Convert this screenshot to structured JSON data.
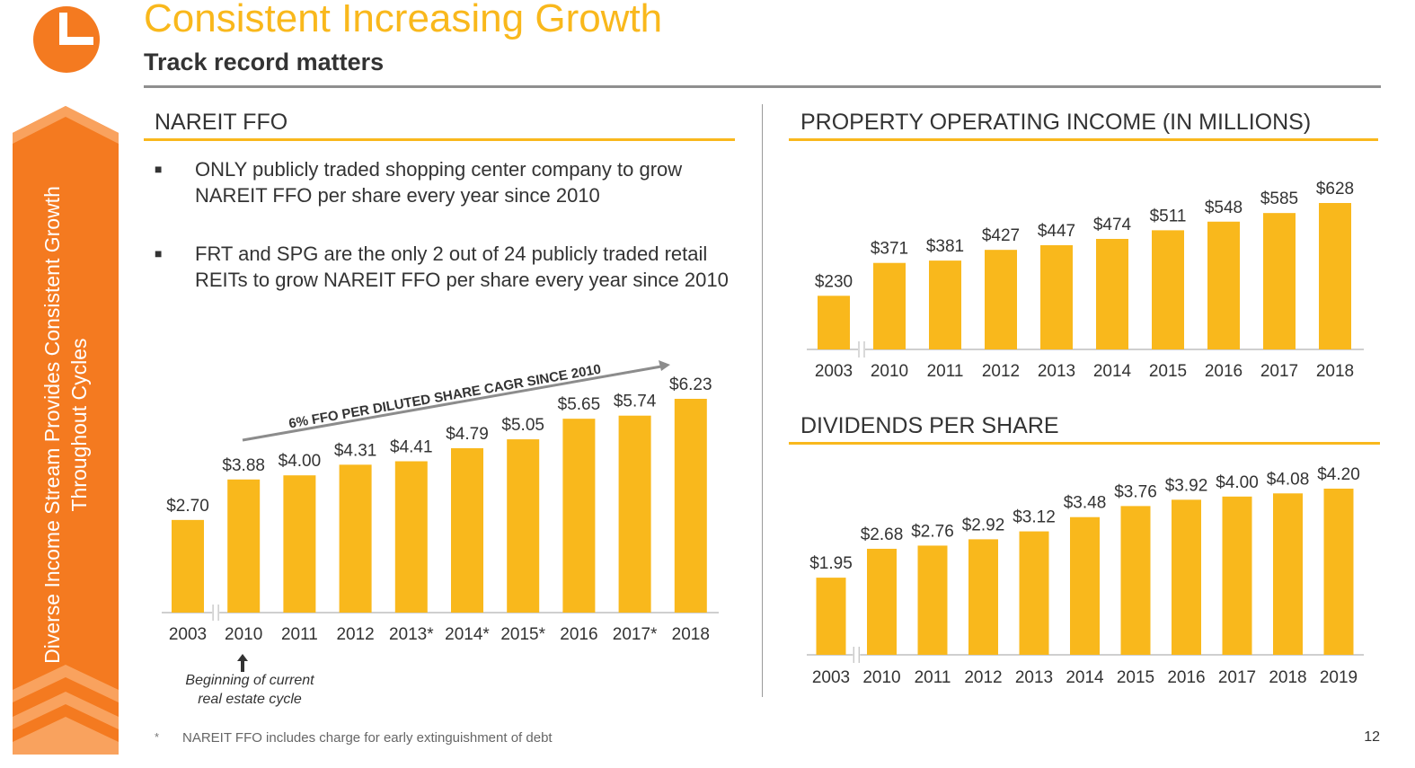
{
  "header": {
    "title": "Consistent Increasing Growth",
    "subtitle": "Track record matters"
  },
  "side_banner": {
    "line1": "Diverse Income Stream Provides Consistent Growth",
    "line2": "Throughout Cycles"
  },
  "ffo_section": {
    "title": "NAREIT FFO",
    "bullets": [
      "ONLY publicly traded shopping center company to grow NAREIT FFO per share every year since 2010",
      "FRT and SPG are the only 2 out of 24 publicly traded retail REITs to grow NAREIT FFO per share every year since 2010"
    ],
    "trend_label": "6% FFO PER DILUTED SHARE CAGR SINCE 2010",
    "cycle_note": [
      "Beginning of current",
      "real estate cycle"
    ]
  },
  "poi_section": {
    "title": "PROPERTY OPERATING INCOME (IN MILLIONS)"
  },
  "dps_section": {
    "title": "DIVIDENDS PER SHARE"
  },
  "footer": {
    "star": "*",
    "footnote": "NAREIT FFO includes charge for early extinguishment of debt",
    "page_number": "12"
  },
  "colors": {
    "bar": "#F9B81C",
    "accent_orange": "#F47A20",
    "axis": "#bfbfbf",
    "trend_arrow": "#8c8c8c"
  },
  "chart_data": [
    {
      "type": "bar",
      "id": "ffo",
      "categories": [
        "2003",
        "2010",
        "2011",
        "2012",
        "2013*",
        "2014*",
        "2015*",
        "2016",
        "2017*",
        "2018"
      ],
      "values": [
        2.7,
        3.88,
        4.0,
        4.31,
        4.41,
        4.79,
        5.05,
        5.65,
        5.74,
        6.23
      ],
      "labels": [
        "$2.70",
        "$3.88",
        "$4.00",
        "$4.31",
        "$4.41",
        "$4.79",
        "$5.05",
        "$5.65",
        "$5.74",
        "$6.23"
      ],
      "axis_break_after": "2003",
      "ylim": [
        0,
        6.23
      ]
    },
    {
      "type": "bar",
      "id": "poi",
      "categories": [
        "2003",
        "2010",
        "2011",
        "2012",
        "2013",
        "2014",
        "2015",
        "2016",
        "2017",
        "2018"
      ],
      "values": [
        230,
        371,
        381,
        427,
        447,
        474,
        511,
        548,
        585,
        628
      ],
      "labels": [
        "$230",
        "$371",
        "$381",
        "$427",
        "$447",
        "$474",
        "$511",
        "$548",
        "$585",
        "$628"
      ],
      "axis_break_after": "2003",
      "ylim": [
        0,
        628
      ]
    },
    {
      "type": "bar",
      "id": "dps",
      "categories": [
        "2003",
        "2010",
        "2011",
        "2012",
        "2013",
        "2014",
        "2015",
        "2016",
        "2017",
        "2018",
        "2019"
      ],
      "values": [
        1.95,
        2.68,
        2.76,
        2.92,
        3.12,
        3.48,
        3.76,
        3.92,
        4.0,
        4.08,
        4.2
      ],
      "labels": [
        "$1.95",
        "$2.68",
        "$2.76",
        "$2.92",
        "$3.12",
        "$3.48",
        "$3.76",
        "$3.92",
        "$4.00",
        "$4.08",
        "$4.20"
      ],
      "axis_break_after": "2003",
      "ylim": [
        0,
        4.2
      ]
    }
  ]
}
